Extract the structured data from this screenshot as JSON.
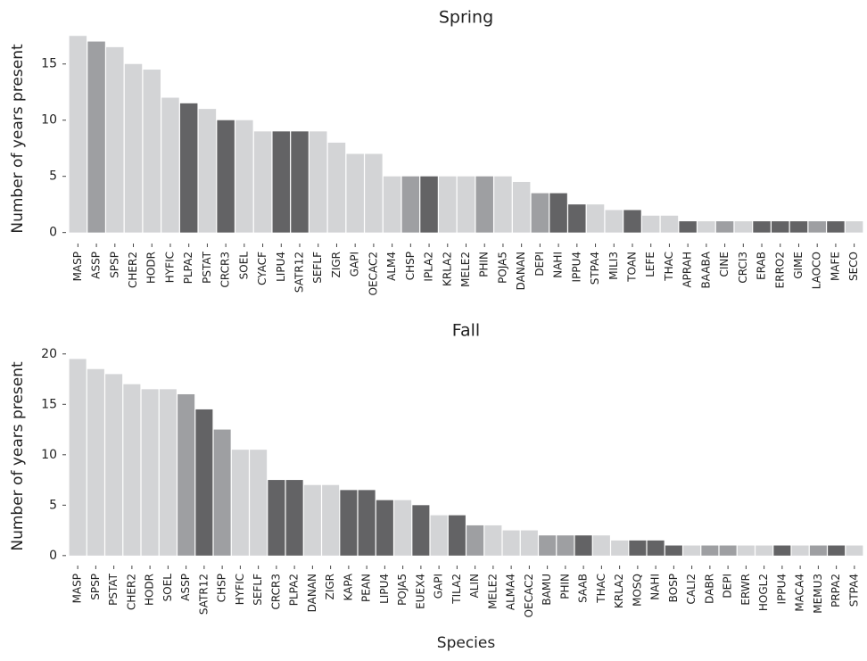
{
  "chart_data": [
    {
      "type": "bar",
      "title": "Spring",
      "ylabel": "Number of years present",
      "categories": [
        "MASP",
        "ASSP",
        "SPSP",
        "CHER2",
        "HODR",
        "HYFIC",
        "PLPA2",
        "PSTAT",
        "CRCR3",
        "SOEL",
        "CYACF",
        "LIPU4",
        "SATR12",
        "SEFLF",
        "ZIGR",
        "GAPI",
        "OECAC2",
        "ALM4",
        "CHSP",
        "IPLA2",
        "KRLA2",
        "MELE2",
        "PHIN",
        "POJA5",
        "DANAN",
        "DEPI",
        "NAHI",
        "IPPU4",
        "STPA4",
        "MILI3",
        "TOAN",
        "LEFE",
        "THAC",
        "APRAH",
        "BAABA",
        "CINE",
        "CRCI3",
        "ERAB",
        "ERRO2",
        "GIME",
        "LAOCO",
        "MAFE",
        "SECO"
      ],
      "values": [
        17.5,
        17,
        16.5,
        15,
        14.5,
        12,
        11.5,
        11,
        10,
        10,
        9,
        9,
        9,
        9,
        8,
        7,
        7,
        5,
        5,
        5,
        5,
        5,
        5,
        5,
        4.5,
        3.5,
        3.5,
        2.5,
        2.5,
        2,
        2,
        1.5,
        1.5,
        1,
        1,
        1,
        1,
        1,
        1,
        1,
        1,
        1,
        1
      ],
      "colors": [
        "#d3d4d6",
        "#9e9fa2",
        "#d3d4d6",
        "#d3d4d6",
        "#d3d4d6",
        "#d3d4d6",
        "#636365",
        "#d3d4d6",
        "#636365",
        "#d3d4d6",
        "#d3d4d6",
        "#636365",
        "#636365",
        "#d3d4d6",
        "#d3d4d6",
        "#d3d4d6",
        "#d3d4d6",
        "#d3d4d6",
        "#9e9fa2",
        "#636365",
        "#d3d4d6",
        "#d3d4d6",
        "#9e9fa2",
        "#d3d4d6",
        "#d3d4d6",
        "#9e9fa2",
        "#636365",
        "#636365",
        "#d3d4d6",
        "#d3d4d6",
        "#636365",
        "#d3d4d6",
        "#d3d4d6",
        "#636365",
        "#d3d4d6",
        "#9e9fa2",
        "#d3d4d6",
        "#636365",
        "#636365",
        "#636365",
        "#9e9fa2",
        "#636365",
        "#d3d4d6"
      ],
      "ylim": [
        -0.9,
        17.6
      ],
      "yticks": [
        0,
        5,
        10,
        15
      ]
    },
    {
      "type": "bar",
      "title": "Fall",
      "ylabel": "Number of years present",
      "xlabel": "Species",
      "categories": [
        "MASP",
        "SPSP",
        "PSTAT",
        "CHER2",
        "HODR",
        "SOEL",
        "ASSP",
        "SATR12",
        "CHSP",
        "HYFIC",
        "SEFLF",
        "CRCR3",
        "PLPA2",
        "DANAN",
        "ZIGR",
        "KAPA",
        "PEAN",
        "LIPU4",
        "POJA5",
        "EUEX4",
        "GAPI",
        "TILA2",
        "ALIN",
        "MELE2",
        "ALMA4",
        "OECAC2",
        "BAMU",
        "PHIN",
        "SAAB",
        "THAC",
        "KRLA2",
        "MOSQ",
        "NAHI",
        "BOSP",
        "CALI2",
        "DABR",
        "DEPI",
        "ERWR",
        "HOGL2",
        "IPPU4",
        "MACA4",
        "MEMU3",
        "PRPA2",
        "STPA4"
      ],
      "values": [
        19.5,
        18.5,
        18,
        17,
        16.5,
        16.5,
        16,
        14.5,
        12.5,
        10.5,
        10.5,
        7.5,
        7.5,
        7,
        7,
        6.5,
        6.5,
        5.5,
        5.5,
        5,
        4,
        4,
        3,
        3,
        2.5,
        2.5,
        2,
        2,
        2,
        2,
        1.5,
        1.5,
        1.5,
        1,
        1,
        1,
        1,
        1,
        1,
        1,
        1,
        1,
        1,
        1
      ],
      "colors": [
        "#d3d4d6",
        "#d3d4d6",
        "#d3d4d6",
        "#d3d4d6",
        "#d3d4d6",
        "#d3d4d6",
        "#9e9fa2",
        "#636365",
        "#9e9fa2",
        "#d3d4d6",
        "#d3d4d6",
        "#636365",
        "#636365",
        "#d3d4d6",
        "#d3d4d6",
        "#636365",
        "#636365",
        "#636365",
        "#d3d4d6",
        "#636365",
        "#d3d4d6",
        "#636365",
        "#9e9fa2",
        "#d3d4d6",
        "#d3d4d6",
        "#d3d4d6",
        "#9e9fa2",
        "#9e9fa2",
        "#636365",
        "#d3d4d6",
        "#d3d4d6",
        "#636365",
        "#636365",
        "#636365",
        "#d3d4d6",
        "#9e9fa2",
        "#9e9fa2",
        "#d3d4d6",
        "#d3d4d6",
        "#636365",
        "#d3d4d6",
        "#9e9fa2",
        "#636365",
        "#d3d4d6"
      ],
      "ylim": [
        -0.9,
        20.6
      ],
      "yticks": [
        0,
        5,
        10,
        15,
        20
      ]
    }
  ]
}
